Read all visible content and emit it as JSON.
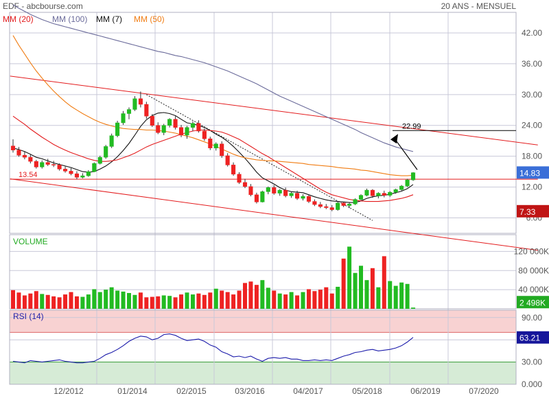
{
  "header": {
    "left": "EDF - abcbourse.com",
    "right": "20 ANS - MENSUEL"
  },
  "legend": [
    {
      "label": "MM (20)",
      "color": "#e31a1c"
    },
    {
      "label": "MM (100)",
      "color": "#6a6a9a"
    },
    {
      "label": "MM (7)",
      "color": "#111111"
    },
    {
      "label": "MM (50)",
      "color": "#f07c12"
    }
  ],
  "colors": {
    "up": "#22bb22",
    "down": "#ee2222",
    "trend": "#e31a1c",
    "grid": "#c8c8d8",
    "rsi_overbought_zone": "#f8d2d2",
    "rsi_oversold_zone": "#d6ebd6",
    "rsi_line": "#1a1aaa"
  },
  "x_labels": [
    "12/2012",
    "01/2014",
    "02/2015",
    "03/2016",
    "04/2017",
    "05/2018",
    "06/2019",
    "07/2020"
  ],
  "price_axis": {
    "ticks": [
      "42.00",
      "36.00",
      "30.00",
      "24.00",
      "18.00",
      "12.00",
      "6.00"
    ]
  },
  "volume_axis": {
    "title": "VOLUME",
    "ticks": [
      "120 000K",
      "80 000K",
      "40 000K"
    ]
  },
  "rsi_axis": {
    "title": "RSI (14)",
    "ticks": [
      "90.00",
      "60.00",
      "30.00",
      "0.000"
    ]
  },
  "annotations": {
    "support_label": "13.54",
    "target_label": "22.99",
    "last_price": "14.83",
    "last_volume": "2 498K",
    "last_rsi": "63.21",
    "price_tag_bottom": "7.33"
  },
  "chart_data": [
    {
      "type": "candlestick",
      "title": "EDF",
      "frequency": "monthly",
      "ylim": [
        3,
        46
      ],
      "candles": [
        [
          20.0,
          21.3,
          18.7,
          19.2
        ],
        [
          19.2,
          19.8,
          17.9,
          18.2
        ],
        [
          18.2,
          19.0,
          17.4,
          17.8
        ],
        [
          17.8,
          18.4,
          16.6,
          17.0
        ],
        [
          17.0,
          17.3,
          15.6,
          15.9
        ],
        [
          15.9,
          17.2,
          15.6,
          16.8
        ],
        [
          16.8,
          17.5,
          16.1,
          16.4
        ],
        [
          16.4,
          17.1,
          15.9,
          16.3
        ],
        [
          16.3,
          16.6,
          15.2,
          15.5
        ],
        [
          15.5,
          16.0,
          14.8,
          15.1
        ],
        [
          15.1,
          15.7,
          14.3,
          14.6
        ],
        [
          14.6,
          15.1,
          13.5,
          13.9
        ],
        [
          13.9,
          14.7,
          13.7,
          14.2
        ],
        [
          14.2,
          15.3,
          14.0,
          15.0
        ],
        [
          15.0,
          16.8,
          14.9,
          16.6
        ],
        [
          16.6,
          18.1,
          16.4,
          17.8
        ],
        [
          17.8,
          20.2,
          17.5,
          19.9
        ],
        [
          19.9,
          22.4,
          19.6,
          22.0
        ],
        [
          22.0,
          24.9,
          21.7,
          24.5
        ],
        [
          24.5,
          26.8,
          24.1,
          26.3
        ],
        [
          26.3,
          27.5,
          25.2,
          27.1
        ],
        [
          27.1,
          29.7,
          26.8,
          29.2
        ],
        [
          29.2,
          30.6,
          27.5,
          28.1
        ],
        [
          28.1,
          28.6,
          25.3,
          25.8
        ],
        [
          25.8,
          26.2,
          23.7,
          24.0
        ],
        [
          24.0,
          24.6,
          22.3,
          22.6
        ],
        [
          22.6,
          24.3,
          22.1,
          24.0
        ],
        [
          24.0,
          25.4,
          23.6,
          25.2
        ],
        [
          25.2,
          25.8,
          23.2,
          23.6
        ],
        [
          23.6,
          24.1,
          21.7,
          22.1
        ],
        [
          22.1,
          23.9,
          21.4,
          23.6
        ],
        [
          23.6,
          24.8,
          22.9,
          24.4
        ],
        [
          24.4,
          25.0,
          22.6,
          22.9
        ],
        [
          22.9,
          23.4,
          21.0,
          21.4
        ],
        [
          21.4,
          21.8,
          19.2,
          19.6
        ],
        [
          19.6,
          20.7,
          19.1,
          20.4
        ],
        [
          20.4,
          20.9,
          17.7,
          18.1
        ],
        [
          18.1,
          18.6,
          16.0,
          16.3
        ],
        [
          16.3,
          16.8,
          14.2,
          14.5
        ],
        [
          14.5,
          14.9,
          12.6,
          12.9
        ],
        [
          12.9,
          13.6,
          11.8,
          12.1
        ],
        [
          12.1,
          12.6,
          10.2,
          10.5
        ],
        [
          10.5,
          10.9,
          8.8,
          9.1
        ],
        [
          9.1,
          11.3,
          9.0,
          11.1
        ],
        [
          11.1,
          12.1,
          10.6,
          11.9
        ],
        [
          11.9,
          12.4,
          10.5,
          10.8
        ],
        [
          10.8,
          11.6,
          10.3,
          11.4
        ],
        [
          11.4,
          11.9,
          10.0,
          10.3
        ],
        [
          10.3,
          11.1,
          9.9,
          10.8
        ],
        [
          10.8,
          11.3,
          9.5,
          9.8
        ],
        [
          9.8,
          10.6,
          9.4,
          10.2
        ],
        [
          10.2,
          10.5,
          8.9,
          9.2
        ],
        [
          9.2,
          9.6,
          8.3,
          8.6
        ],
        [
          8.6,
          9.1,
          7.9,
          8.2
        ],
        [
          8.2,
          8.7,
          7.7,
          8.0
        ],
        [
          8.0,
          8.5,
          7.3,
          7.6
        ],
        [
          7.6,
          9.2,
          7.4,
          8.9
        ],
        [
          8.9,
          9.1,
          8.1,
          8.4
        ],
        [
          8.4,
          9.0,
          7.9,
          8.7
        ],
        [
          8.7,
          9.8,
          8.5,
          9.6
        ],
        [
          9.6,
          10.6,
          9.4,
          10.4
        ],
        [
          10.4,
          11.7,
          10.2,
          11.4
        ],
        [
          11.4,
          11.6,
          9.9,
          10.3
        ],
        [
          10.3,
          11.0,
          9.8,
          10.8
        ],
        [
          10.8,
          11.3,
          10.0,
          10.4
        ],
        [
          10.4,
          11.2,
          10.1,
          11.0
        ],
        [
          11.0,
          11.7,
          10.7,
          11.5
        ],
        [
          11.5,
          12.4,
          11.3,
          12.2
        ],
        [
          12.2,
          13.6,
          12.0,
          13.4
        ],
        [
          13.4,
          14.9,
          13.2,
          14.8
        ]
      ],
      "moving_averages": {
        "MM (7)": [
          19.6,
          19.3,
          18.9,
          18.4,
          17.8,
          17.5,
          17.1,
          16.7,
          16.4,
          16.1,
          15.8,
          15.4,
          15.0,
          14.9,
          15.0,
          15.5,
          16.1,
          16.9,
          17.9,
          19.1,
          20.5,
          22.1,
          23.8,
          25.1,
          25.9,
          26.4,
          26.5,
          26.3,
          25.9,
          25.2,
          24.5,
          24.3,
          24.0,
          23.6,
          23.0,
          22.3,
          21.7,
          20.9,
          19.9,
          18.8,
          17.6,
          16.3,
          14.9,
          13.8,
          13.2,
          12.6,
          11.9,
          11.4,
          11.1,
          11.0,
          10.9,
          10.5,
          10.1,
          9.8,
          9.5,
          9.3,
          9.2,
          9.1,
          9.0,
          9.0,
          9.3,
          9.8,
          10.1,
          10.3,
          10.4,
          10.6,
          10.9,
          11.2,
          11.7,
          12.5
        ],
        "MM (20)": [
          25.8,
          25.0,
          24.2,
          23.3,
          22.5,
          21.7,
          21.0,
          20.3,
          19.7,
          19.2,
          18.7,
          18.3,
          17.9,
          17.5,
          17.2,
          17.0,
          17.0,
          17.1,
          17.3,
          17.7,
          18.1,
          18.6,
          19.2,
          19.8,
          20.3,
          20.7,
          21.1,
          21.5,
          21.9,
          22.3,
          22.6,
          22.9,
          23.1,
          23.1,
          23.0,
          22.9,
          22.7,
          22.3,
          21.8,
          21.3,
          20.6,
          19.9,
          19.2,
          18.5,
          17.9,
          17.2,
          16.5,
          15.8,
          15.1,
          14.4,
          13.7,
          13.0,
          12.3,
          11.6,
          11.0,
          10.5,
          10.2,
          9.9,
          9.6,
          9.4,
          9.3,
          9.2,
          9.2,
          9.2,
          9.3,
          9.4,
          9.6,
          9.8,
          10.1,
          10.5
        ],
        "MM (50)": [
          41.5,
          39.6,
          37.9,
          36.2,
          34.6,
          33.2,
          31.9,
          30.7,
          29.6,
          28.6,
          27.7,
          27.0,
          26.3,
          25.7,
          25.1,
          24.6,
          24.2,
          23.9,
          23.6,
          23.4,
          23.3,
          23.2,
          23.2,
          23.1,
          23.1,
          23.0,
          22.9,
          22.7,
          22.5,
          22.2,
          21.9,
          21.6,
          21.2,
          20.8,
          20.4,
          19.9,
          19.4,
          18.9,
          18.4,
          18.0,
          17.7,
          17.5,
          17.3,
          17.2,
          17.1,
          17.1,
          17.0,
          16.9,
          16.8,
          16.7,
          16.6,
          16.4,
          16.3,
          16.2,
          16.1,
          16.0,
          15.8,
          15.7,
          15.6,
          15.5,
          15.3,
          15.2,
          15.0,
          14.8,
          14.6,
          14.4,
          14.3,
          14.2,
          14.2,
          14.3
        ],
        "MM (100)": [
          47.5,
          46.8,
          46.2,
          45.6,
          45.1,
          44.6,
          44.2,
          43.8,
          43.5,
          43.2,
          42.9,
          42.6,
          42.3,
          42.0,
          41.7,
          41.4,
          41.1,
          40.8,
          40.5,
          40.2,
          39.9,
          39.6,
          39.3,
          39.0,
          38.7,
          38.4,
          38.2,
          37.9,
          37.6,
          37.4,
          37.1,
          36.8,
          36.5,
          36.2,
          35.8,
          35.4,
          35.0,
          34.6,
          34.1,
          33.6,
          33.1,
          32.6,
          32.1,
          31.5,
          30.9,
          30.3,
          29.7,
          29.2,
          28.7,
          28.2,
          27.7,
          27.2,
          26.7,
          26.2,
          25.7,
          25.2,
          24.7,
          24.2,
          23.7,
          23.2,
          22.6,
          22.1,
          21.6,
          21.1,
          20.6,
          20.2,
          19.8,
          19.5,
          19.2,
          18.9
        ]
      },
      "trendlines": [
        {
          "type": "channel-upper",
          "from": [
            -0.5,
            33.6
          ],
          "to": [
            90.5,
            20.2
          ]
        },
        {
          "type": "channel-lower",
          "from": [
            -0.5,
            13.6
          ],
          "to": [
            90.5,
            -0.3
          ]
        },
        {
          "type": "support",
          "from": [
            -0.5,
            13.54
          ],
          "to": [
            90.5,
            13.54
          ]
        },
        {
          "type": "dotted-resistance",
          "from": [
            23,
            30.0
          ],
          "to": [
            62,
            5.5
          ]
        }
      ],
      "target": {
        "from_value": 14.83,
        "to_value": 22.99
      },
      "last_price": 14.83
    },
    {
      "type": "bar",
      "title": "VOLUME",
      "ylabel": "K",
      "ylim": [
        0,
        155000
      ],
      "values": [
        39000,
        34000,
        28000,
        32000,
        37000,
        31000,
        29000,
        26000,
        24000,
        30000,
        35000,
        26000,
        25000,
        30000,
        41000,
        35000,
        40000,
        45000,
        38000,
        36000,
        33000,
        29000,
        34000,
        24000,
        25000,
        26000,
        28000,
        27000,
        24000,
        30000,
        34000,
        30000,
        32000,
        29000,
        34000,
        42000,
        38000,
        35000,
        30000,
        38000,
        54000,
        57000,
        50000,
        60000,
        44000,
        38000,
        32000,
        30000,
        35000,
        28000,
        35000,
        41000,
        37000,
        40000,
        45000,
        32000,
        46000,
        105000,
        130000,
        75000,
        90000,
        60000,
        85000,
        45000,
        110000,
        58000,
        48000,
        55000,
        52000,
        2500
      ],
      "last_value": 2498
    },
    {
      "type": "line",
      "title": "RSI (14)",
      "ylim": [
        0,
        100
      ],
      "zones": [
        {
          "from": 70,
          "to": 100,
          "label": "overbought"
        },
        {
          "from": 0,
          "to": 30,
          "label": "oversold"
        }
      ],
      "values": [
        31,
        30,
        29,
        32,
        31,
        30,
        31,
        32,
        33,
        31,
        30,
        29,
        29,
        30,
        31,
        35,
        40,
        43,
        47,
        52,
        58,
        62,
        65,
        64,
        60,
        62,
        67,
        68,
        66,
        62,
        59,
        60,
        61,
        58,
        53,
        50,
        44,
        41,
        37,
        38,
        36,
        38,
        34,
        31,
        35,
        36,
        35,
        36,
        34,
        34,
        32,
        32,
        33,
        32,
        33,
        32,
        35,
        38,
        40,
        43,
        44,
        46,
        47,
        45,
        46,
        47,
        49,
        52,
        57,
        63.21
      ],
      "last_value": 63.21
    }
  ]
}
